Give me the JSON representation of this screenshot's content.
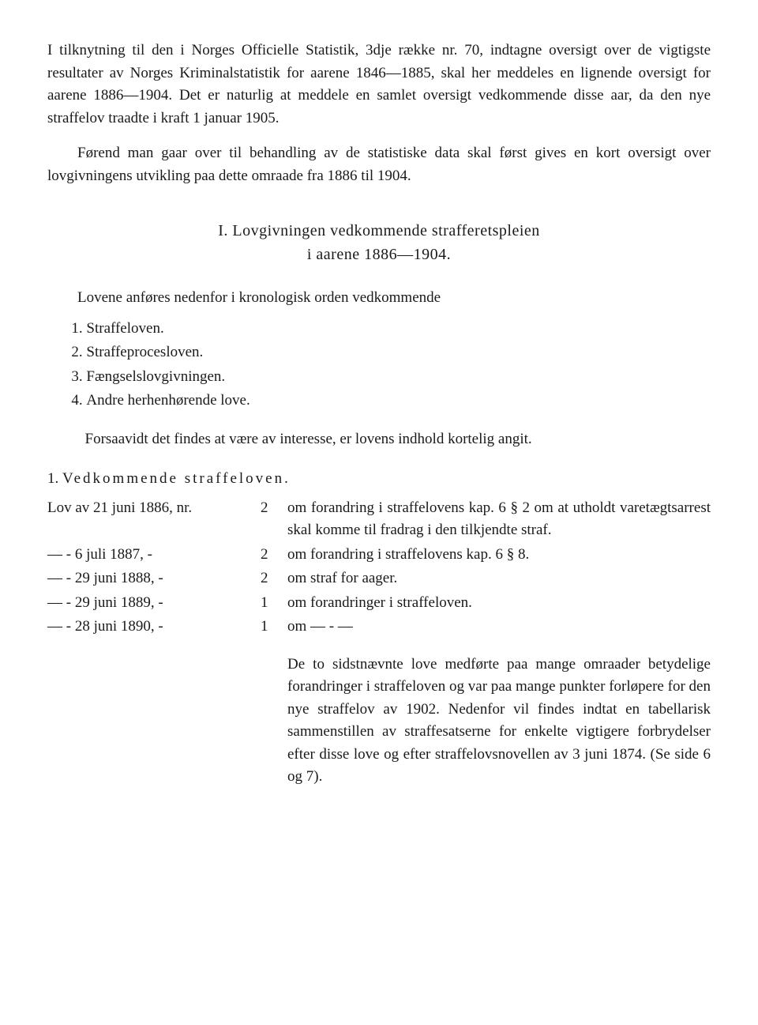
{
  "intro_para": "I tilknytning til den i Norges Officielle Statistik, 3dje række nr. 70, indtagne oversigt over de vigtigste resultater av Norges Kriminalstatistik for aarene 1846—1885, skal her meddeles en lignende oversigt for aarene 1886—1904. Det er naturlig at meddele en samlet oversigt vedkommende disse aar, da den nye straffelov traadte i kraft 1 januar 1905.",
  "intro_para2": "Førend man gaar over til behandling av de statistiske data skal først gives en kort oversigt over lovgivningens utvikling paa dette omraade fra 1886 til 1904.",
  "section_heading_num": "I.",
  "section_heading_l1": "Lovgivningen vedkommende strafferetspleien",
  "section_heading_l2": "i aarene 1886—1904.",
  "list_intro": "Lovene anføres nedenfor i kronologisk orden vedkommende",
  "list_items": [
    "Straffeloven.",
    "Straffeprocesloven.",
    "Fængselslovgivningen.",
    "Andre herhenhørende love."
  ],
  "angit_para": "Forsaavidt det findes at være av interesse, er lovens indhold kortelig angit.",
  "sub_num": "1.",
  "sub_heading": "Vedkommende straffeloven.",
  "law_rows": [
    {
      "left": "Lov av 21 juni 1886, nr.",
      "mid": "2",
      "right": "om forandring i straffelovens kap. 6 § 2 om at utholdt varetægtsarrest skal komme til fradrag i den tilkjendte straf."
    },
    {
      "left": "—    -    6 juli  1887,   -",
      "mid": "2",
      "right": "om forandring i straffelovens kap. 6 § 8."
    },
    {
      "left": "—    -  29 juni 1888,   -",
      "mid": "2",
      "right": "om straf for aager."
    },
    {
      "left": "—    -  29 juni 1889,   -",
      "mid": "1",
      "right": "om forandringer i straffeloven."
    },
    {
      "left": "—    -  28 juni 1890,   -",
      "mid": "1",
      "right": "om            —            -            —"
    }
  ],
  "tail_para": "De to sidstnævnte love medførte paa mange omraader betydelige forandringer i straffeloven og var paa mange punkter forløpere for den nye straffelov av 1902. Nedenfor vil findes indtat en tabellarisk sammenstillen av straffesatserne for enkelte vigtigere forbrydelser efter disse love og efter straffelovsnovellen av 3 juni 1874. (Se side 6 og 7)."
}
